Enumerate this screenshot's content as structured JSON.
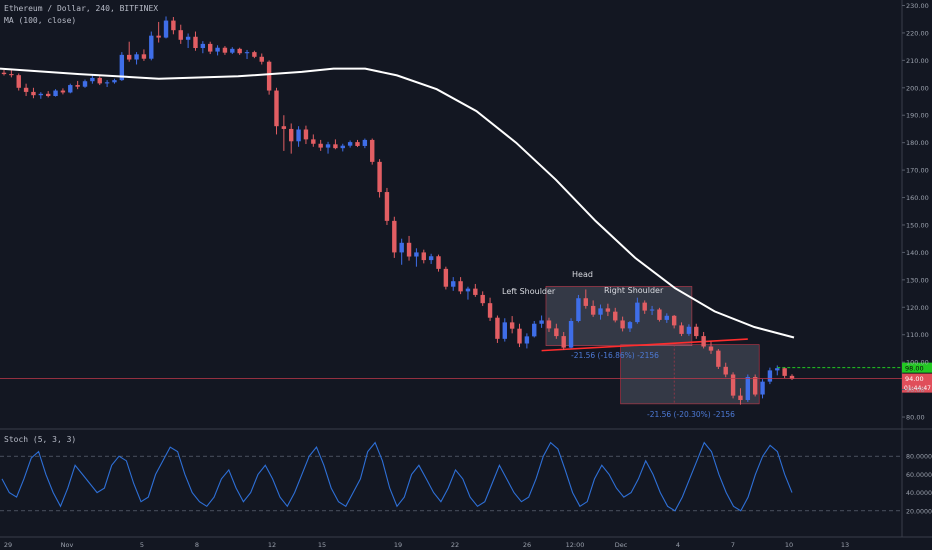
{
  "header": {
    "symbol_line": "Ethereum / Dollar, 240, BITFINEX",
    "ma_line": "MA (100, close)",
    "stoch_line": "Stoch (5, 3, 3)"
  },
  "colors": {
    "background": "#131722",
    "up": "#3f6ee8",
    "down": "#e25e63",
    "ma": "#ffffff",
    "stoch": "#2e6fd6",
    "accent_green": "#22c922",
    "current_line": "#c0384a"
  },
  "price_axis": {
    "ticks": [
      "230.00",
      "220.00",
      "210.00",
      "200.00",
      "190.00",
      "180.00",
      "170.00",
      "160.00",
      "150.00",
      "140.00",
      "130.00",
      "120.00",
      "110.00",
      "100.00",
      "90.00",
      "80.00"
    ],
    "green_label": "98.00",
    "current_label": "94.00",
    "countdown_label": "01:44:47"
  },
  "stoch_axis": {
    "ticks": [
      "80.0000",
      "60.0000",
      "40.0000",
      "20.0000"
    ]
  },
  "time_axis": {
    "labels": [
      "29",
      "Nov",
      "5",
      "8",
      "12",
      "15",
      "19",
      "22",
      "26",
      "12:00",
      "Dec",
      "4",
      "7",
      "10",
      "13"
    ]
  },
  "annotations": {
    "left_shoulder": "Left Shoulder",
    "head": "Head",
    "right_shoulder": "Right Shoulder",
    "measure_top": "-21.56 (-16.86%) -2156",
    "measure_bottom": "-21.56 (-20.30%) -2156"
  },
  "chart_data": {
    "type": "candlestick",
    "price_range": [
      76,
      232
    ],
    "stoch_range": [
      0,
      100
    ],
    "candles": [
      [
        205.5,
        206.5,
        204.5,
        205.0
      ],
      [
        205.0,
        206.8,
        203.8,
        204.6
      ],
      [
        204.6,
        205.2,
        199.0,
        200.0
      ],
      [
        200.0,
        201.5,
        197.0,
        198.5
      ],
      [
        198.5,
        200.0,
        196.2,
        197.3
      ],
      [
        197.3,
        198.4,
        196.0,
        197.8
      ],
      [
        197.8,
        198.8,
        196.5,
        197.0
      ],
      [
        197.0,
        199.5,
        196.8,
        199.0
      ],
      [
        199.0,
        199.8,
        197.6,
        198.3
      ],
      [
        198.3,
        201.5,
        198.0,
        201.0
      ],
      [
        201.0,
        202.5,
        199.5,
        200.4
      ],
      [
        200.4,
        203.0,
        200.0,
        202.4
      ],
      [
        202.4,
        204.8,
        201.5,
        203.6
      ],
      [
        203.6,
        204.2,
        201.0,
        201.6
      ],
      [
        201.6,
        202.8,
        200.3,
        202.0
      ],
      [
        202.0,
        203.3,
        201.5,
        202.8
      ],
      [
        202.8,
        213.0,
        202.5,
        212.0
      ],
      [
        212.0,
        216.8,
        209.5,
        210.3
      ],
      [
        210.3,
        213.0,
        208.5,
        212.2
      ],
      [
        212.2,
        214.0,
        209.8,
        210.6
      ],
      [
        210.6,
        220.5,
        210.0,
        219.0
      ],
      [
        219.0,
        224.0,
        216.5,
        218.3
      ],
      [
        218.3,
        226.0,
        218.0,
        224.5
      ],
      [
        224.5,
        225.8,
        219.5,
        221.0
      ],
      [
        221.0,
        223.0,
        216.0,
        217.5
      ],
      [
        217.5,
        219.8,
        214.5,
        218.6
      ],
      [
        218.6,
        220.5,
        213.5,
        214.5
      ],
      [
        214.5,
        217.0,
        212.6,
        216.0
      ],
      [
        216.0,
        216.8,
        212.3,
        213.2
      ],
      [
        213.2,
        215.5,
        211.8,
        214.6
      ],
      [
        214.6,
        215.2,
        212.0,
        212.8
      ],
      [
        212.8,
        214.8,
        212.3,
        214.2
      ],
      [
        214.2,
        214.6,
        212.0,
        212.6
      ],
      [
        212.6,
        213.8,
        210.5,
        213.0
      ],
      [
        213.0,
        213.5,
        210.8,
        211.3
      ],
      [
        211.3,
        212.5,
        208.5,
        209.5
      ],
      [
        209.5,
        210.0,
        197.5,
        199.0
      ],
      [
        199.0,
        200.0,
        183.0,
        186.0
      ],
      [
        186.0,
        190.0,
        177.0,
        185.0
      ],
      [
        185.0,
        187.0,
        176.0,
        180.5
      ],
      [
        180.5,
        186.0,
        178.5,
        184.8
      ],
      [
        184.8,
        186.2,
        179.5,
        181.2
      ],
      [
        181.2,
        183.0,
        178.5,
        179.6
      ],
      [
        179.6,
        181.0,
        177.0,
        178.2
      ],
      [
        178.2,
        180.3,
        176.0,
        179.4
      ],
      [
        179.4,
        181.2,
        177.6,
        178.0
      ],
      [
        178.0,
        179.6,
        176.8,
        178.9
      ],
      [
        178.9,
        180.8,
        178.2,
        180.2
      ],
      [
        180.2,
        181.0,
        178.4,
        178.8
      ],
      [
        178.8,
        181.5,
        178.0,
        181.0
      ],
      [
        181.0,
        181.5,
        172.0,
        173.0
      ],
      [
        173.0,
        174.0,
        160.0,
        162.0
      ],
      [
        162.0,
        163.5,
        150.0,
        151.5
      ],
      [
        151.5,
        153.0,
        138.0,
        140.0
      ],
      [
        140.0,
        145.0,
        135.5,
        143.5
      ],
      [
        143.5,
        146.0,
        137.0,
        138.5
      ],
      [
        138.5,
        141.5,
        134.8,
        140.0
      ],
      [
        140.0,
        141.0,
        136.0,
        137.2
      ],
      [
        137.2,
        139.5,
        135.8,
        138.6
      ],
      [
        138.6,
        139.2,
        133.0,
        134.0
      ],
      [
        134.0,
        134.8,
        126.5,
        127.5
      ],
      [
        127.5,
        131.0,
        126.0,
        129.5
      ],
      [
        129.5,
        131.0,
        124.8,
        125.8
      ],
      [
        125.8,
        127.5,
        122.8,
        126.8
      ],
      [
        126.8,
        128.5,
        123.8,
        124.5
      ],
      [
        124.5,
        125.8,
        120.5,
        121.5
      ],
      [
        121.5,
        123.5,
        115.0,
        116.2
      ],
      [
        116.2,
        117.0,
        107.0,
        108.5
      ],
      [
        108.5,
        116.0,
        107.5,
        114.5
      ],
      [
        114.5,
        116.8,
        110.5,
        112.2
      ],
      [
        112.2,
        114.0,
        105.5,
        106.8
      ],
      [
        106.8,
        110.5,
        105.0,
        109.4
      ],
      [
        109.4,
        115.0,
        109.0,
        114.0
      ],
      [
        114.0,
        117.0,
        112.5,
        115.2
      ],
      [
        115.2,
        116.2,
        111.0,
        112.3
      ],
      [
        112.3,
        114.0,
        108.5,
        109.5
      ],
      [
        109.5,
        111.0,
        104.5,
        105.3
      ],
      [
        105.3,
        116.0,
        105.0,
        115.0
      ],
      [
        115.0,
        124.5,
        114.5,
        123.3
      ],
      [
        123.3,
        126.5,
        119.5,
        120.5
      ],
      [
        120.5,
        122.5,
        116.5,
        117.3
      ],
      [
        117.3,
        121.0,
        115.5,
        119.6
      ],
      [
        119.6,
        121.3,
        116.8,
        118.4
      ],
      [
        118.4,
        119.8,
        114.5,
        115.2
      ],
      [
        115.2,
        116.6,
        111.2,
        112.3
      ],
      [
        112.3,
        115.0,
        111.0,
        114.6
      ],
      [
        114.6,
        123.5,
        114.0,
        121.7
      ],
      [
        121.7,
        122.5,
        117.6,
        118.8
      ],
      [
        118.8,
        120.5,
        117.2,
        119.2
      ],
      [
        119.2,
        119.8,
        114.8,
        115.4
      ],
      [
        115.4,
        117.8,
        114.3,
        116.9
      ],
      [
        116.9,
        117.2,
        112.3,
        113.4
      ],
      [
        113.4,
        114.5,
        109.5,
        110.3
      ],
      [
        110.3,
        113.8,
        109.6,
        112.9
      ],
      [
        112.9,
        114.0,
        108.5,
        109.5
      ],
      [
        109.5,
        111.0,
        105.0,
        105.7
      ],
      [
        105.7,
        107.5,
        103.0,
        104.2
      ],
      [
        104.2,
        104.8,
        97.5,
        98.3
      ],
      [
        98.3,
        99.8,
        94.5,
        95.5
      ],
      [
        95.5,
        96.3,
        86.8,
        87.8
      ],
      [
        87.8,
        90.5,
        84.5,
        86.2
      ],
      [
        86.2,
        95.5,
        85.5,
        94.6
      ],
      [
        94.6,
        95.5,
        87.5,
        88.2
      ],
      [
        88.2,
        93.8,
        86.8,
        92.9
      ],
      [
        92.9,
        98.0,
        92.0,
        97.0
      ],
      [
        97.0,
        98.8,
        95.2,
        97.8
      ],
      [
        97.8,
        98.2,
        94.2,
        95.0
      ],
      [
        95.0,
        95.6,
        93.5,
        94.0
      ]
    ],
    "moving_average": {
      "name": "MA (100, close)",
      "x_frac": [
        0,
        0.1,
        0.2,
        0.3,
        0.38,
        0.42,
        0.46,
        0.5,
        0.55,
        0.6,
        0.65,
        0.7,
        0.75,
        0.8,
        0.85,
        0.9,
        0.95,
        1.0
      ],
      "values": [
        207.0,
        205.0,
        203.3,
        204.2,
        205.8,
        207.0,
        207.0,
        204.5,
        199.5,
        191.5,
        180.0,
        166.5,
        151.5,
        138.0,
        127.0,
        118.5,
        112.8,
        109.0
      ]
    },
    "stochastic": {
      "name": "Stoch (5, 3, 3)",
      "values": [
        55,
        40,
        35,
        55,
        78,
        85,
        60,
        40,
        25,
        45,
        70,
        60,
        50,
        40,
        45,
        70,
        80,
        75,
        50,
        30,
        35,
        60,
        75,
        90,
        85,
        60,
        40,
        30,
        25,
        35,
        55,
        65,
        45,
        30,
        40,
        60,
        70,
        55,
        35,
        25,
        40,
        60,
        80,
        90,
        70,
        45,
        30,
        25,
        40,
        55,
        85,
        95,
        75,
        45,
        25,
        35,
        60,
        70,
        55,
        40,
        30,
        45,
        65,
        55,
        35,
        25,
        30,
        50,
        70,
        55,
        40,
        30,
        35,
        55,
        80,
        95,
        88,
        65,
        40,
        25,
        30,
        55,
        70,
        60,
        45,
        35,
        40,
        55,
        75,
        60,
        40,
        25,
        20,
        35,
        55,
        75,
        95,
        85,
        60,
        40,
        25,
        20,
        35,
        60,
        80,
        92,
        85,
        60,
        40
      ]
    },
    "levels": {
      "green_dashed": 98.0,
      "current": 94.0
    }
  }
}
